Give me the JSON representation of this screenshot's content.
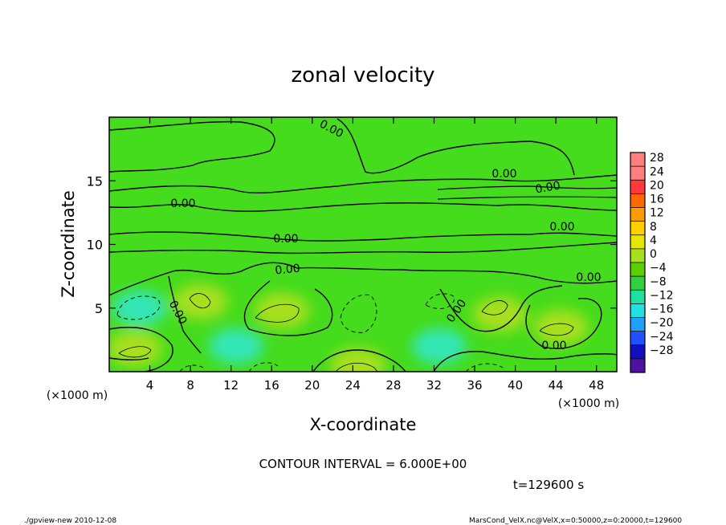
{
  "chart_data": {
    "type": "heatmap",
    "title": "zonal velocity",
    "xlabel": "X-coordinate",
    "ylabel": "Z-coordinate",
    "x_unit": "(×1000 m)",
    "y_unit": "(×1000 m)",
    "xlim": [
      0,
      50
    ],
    "ylim": [
      0,
      20
    ],
    "x_ticks": [
      4,
      8,
      12,
      16,
      20,
      24,
      28,
      32,
      36,
      40,
      44,
      48
    ],
    "y_ticks": [
      5,
      10,
      15
    ],
    "colorbar_levels": [
      28,
      24,
      20,
      16,
      12,
      8,
      4,
      0,
      -4,
      -8,
      -12,
      -16,
      -20,
      -24,
      -28
    ],
    "colorbar_colors": [
      "#ff7f7f",
      "#ff3a3a",
      "#ff6a00",
      "#ff9a00",
      "#ffd000",
      "#e6e600",
      "#a8e020",
      "#5ad000",
      "#30d040",
      "#20e0a0",
      "#20e0e0",
      "#20a0ff",
      "#2050ff",
      "#1010c0",
      "#5010a0"
    ],
    "contour_interval": "CONTOUR INTERVAL = 6.000E+00",
    "contour_label": "0.00",
    "time": "t=129600 s",
    "footer_left": "./gpview-new  2010-12-08",
    "footer_right": "MarsCond_VelX.nc@VelX,x=0:50000,z=0:20000,t=129600",
    "regions": [
      {
        "x": 3,
        "z": 5,
        "value": -8,
        "sign": "negative"
      },
      {
        "x": 9,
        "z": 5.5,
        "value": 4,
        "sign": "positive"
      },
      {
        "x": 17,
        "z": 4.8,
        "value": 8,
        "sign": "positive"
      },
      {
        "x": 24.5,
        "z": 0.5,
        "value": 10,
        "sign": "positive"
      },
      {
        "x": 38.5,
        "z": 4.5,
        "value": 8,
        "sign": "positive"
      },
      {
        "x": 44.5,
        "z": 3.5,
        "value": 8,
        "sign": "positive"
      },
      {
        "x": 2.5,
        "z": 1.8,
        "value": 8,
        "sign": "positive"
      },
      {
        "x": 32.5,
        "z": 2,
        "value": -8,
        "sign": "negative"
      },
      {
        "x": 12.5,
        "z": 2,
        "value": -8,
        "sign": "negative"
      }
    ]
  }
}
